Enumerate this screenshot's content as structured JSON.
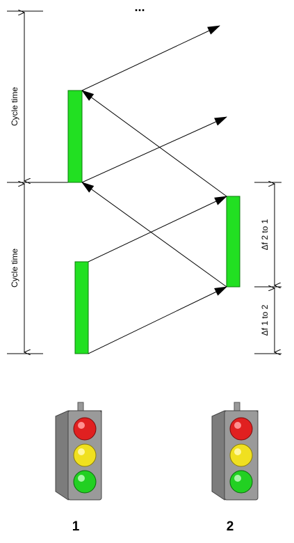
{
  "top_ellipsis": "...",
  "left_labels": {
    "upper": "Cycle time",
    "lower": "Cycle time"
  },
  "right_labels": {
    "upper": "Δf 2 to 1",
    "lower": "Δf 1 to 2"
  },
  "signals": [
    {
      "label": "1"
    },
    {
      "label": "2"
    }
  ],
  "colors": {
    "green_band": "#22e022",
    "band_stroke": "#0a7a0a",
    "arrow": "#000000",
    "housing": "#8c8c8c",
    "lamp_red": "#e02020",
    "lamp_yellow": "#f0e020",
    "lamp_green": "#22d022"
  }
}
